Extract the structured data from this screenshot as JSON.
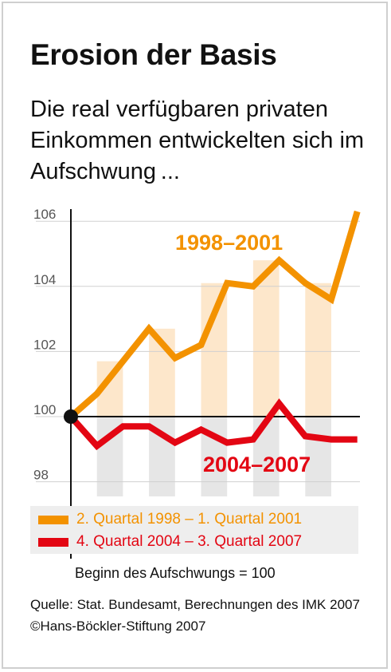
{
  "title": "Erosion der Basis",
  "subtitle": "Die real verfügbaren privaten Einkommen entwickelten sich im Aufschwung ...",
  "colors": {
    "series1": "#f39200",
    "series2": "#e30613",
    "band_orange": "#fde7cb",
    "band_grey": "#e6e6e6"
  },
  "legend": {
    "entry1": "2. Quartal 1998 – 1. Quartal 2001",
    "entry2": "4. Quartal 2004 – 3. Quartal 2007"
  },
  "note": "Beginn des Aufschwungs = 100",
  "source": "Quelle: Stat. Bundesamt, Berechnungen des IMK 2007 ©Hans-Böckler-Stiftung 2007",
  "chart_data": {
    "type": "line",
    "x": [
      0,
      1,
      2,
      3,
      4,
      5,
      6,
      7,
      8,
      9,
      10,
      11
    ],
    "yticks": [
      98,
      100,
      102,
      104,
      106
    ],
    "ylim": [
      97,
      106.5
    ],
    "baseline": 100,
    "series": [
      {
        "name": "1998–2001",
        "color": "#f39200",
        "values": [
          100.0,
          100.7,
          101.7,
          102.7,
          101.8,
          102.2,
          104.1,
          104.0,
          104.8,
          104.1,
          103.6,
          106.3
        ]
      },
      {
        "name": "2004–2007",
        "color": "#e30613",
        "values": [
          100.0,
          99.1,
          99.7,
          99.7,
          99.2,
          99.6,
          99.2,
          99.3,
          100.4,
          99.4,
          99.3,
          99.3
        ]
      }
    ]
  }
}
